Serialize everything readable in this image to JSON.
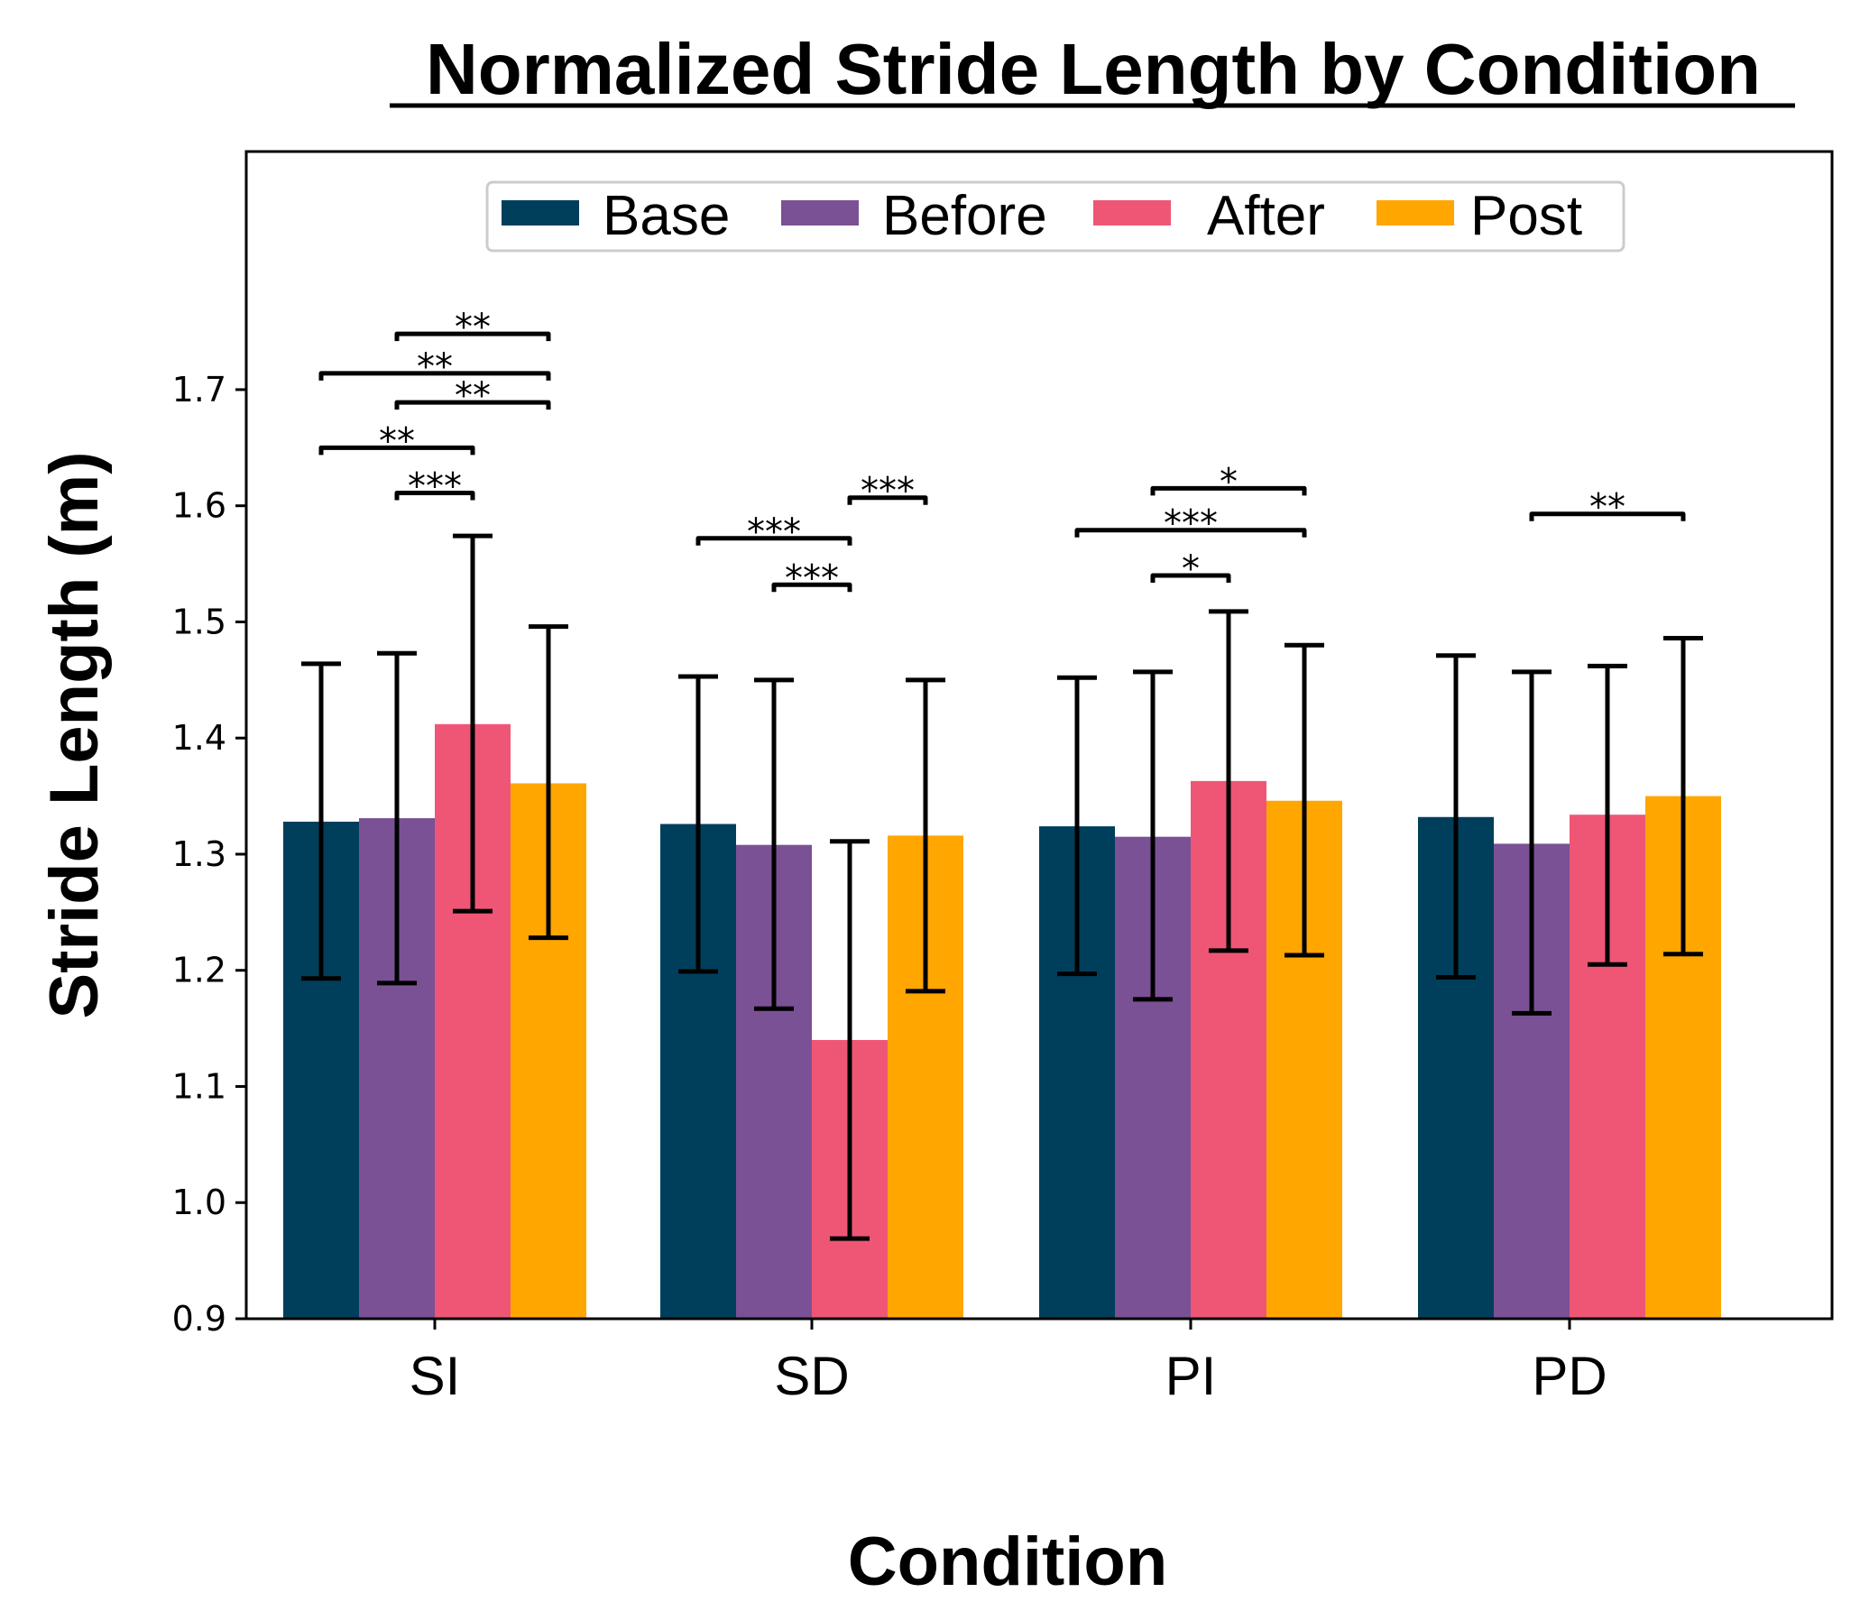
{
  "chart_data": {
    "type": "bar",
    "title": "Normalized Stride Length by Condition",
    "xlabel": "Condition",
    "ylabel": "Stride Length (m)",
    "categories": [
      "SI",
      "SD",
      "PI",
      "PD"
    ],
    "ylim": [
      0.9,
      1.905
    ],
    "yticks": [
      0.9,
      1.0,
      1.1,
      1.2,
      1.3,
      1.4,
      1.5,
      1.6,
      1.7
    ],
    "ytick_labels": [
      "0.9",
      "1.0",
      "1.1",
      "1.2",
      "1.3",
      "1.4",
      "1.5",
      "1.6",
      "1.7"
    ],
    "grid": false,
    "legend_position": "top-center",
    "series": [
      {
        "name": "Base",
        "color": "#003f5c",
        "values": [
          1.328,
          1.326,
          1.324,
          1.332
        ],
        "err_low": [
          1.193,
          1.199,
          1.197,
          1.194
        ],
        "err_high": [
          1.464,
          1.453,
          1.452,
          1.471
        ]
      },
      {
        "name": "Before",
        "color": "#7a5195",
        "values": [
          1.331,
          1.308,
          1.315,
          1.309
        ],
        "err_low": [
          1.189,
          1.167,
          1.175,
          1.163
        ],
        "err_high": [
          1.473,
          1.45,
          1.457,
          1.457
        ]
      },
      {
        "name": "After",
        "color": "#ef5675",
        "values": [
          1.412,
          1.14,
          1.363,
          1.334
        ],
        "err_low": [
          1.251,
          0.969,
          1.217,
          1.205
        ],
        "err_high": [
          1.574,
          1.311,
          1.509,
          1.462
        ]
      },
      {
        "name": "Post",
        "color": "#ffa600",
        "values": [
          1.361,
          1.316,
          1.346,
          1.35
        ],
        "err_low": [
          1.228,
          1.182,
          1.213,
          1.214
        ],
        "err_high": [
          1.496,
          1.45,
          1.48,
          1.486
        ]
      }
    ],
    "significance": [
      {
        "category": 0,
        "from": 1,
        "to": 3,
        "y": 1.748,
        "label": "**"
      },
      {
        "category": 0,
        "from": 0,
        "to": 3,
        "y": 1.714,
        "label": "**"
      },
      {
        "category": 0,
        "from": 1,
        "to": 3,
        "y": 1.689,
        "label": "**"
      },
      {
        "category": 0,
        "from": 0,
        "to": 2,
        "y": 1.65,
        "label": "**"
      },
      {
        "category": 0,
        "from": 1,
        "to": 2,
        "y": 1.611,
        "label": "***"
      },
      {
        "category": 1,
        "from": 0,
        "to": 2,
        "y": 1.572,
        "label": "***"
      },
      {
        "category": 1,
        "from": 1,
        "to": 2,
        "y": 1.532,
        "label": "***"
      },
      {
        "category": 1,
        "from": 2,
        "to": 3,
        "y": 1.607,
        "label": "***"
      },
      {
        "category": 2,
        "from": 1,
        "to": 3,
        "y": 1.615,
        "label": "*"
      },
      {
        "category": 2,
        "from": 0,
        "to": 3,
        "y": 1.579,
        "label": "***"
      },
      {
        "category": 2,
        "from": 1,
        "to": 2,
        "y": 1.54,
        "label": "*"
      },
      {
        "category": 3,
        "from": 1,
        "to": 3,
        "y": 1.593,
        "label": "**"
      }
    ]
  }
}
